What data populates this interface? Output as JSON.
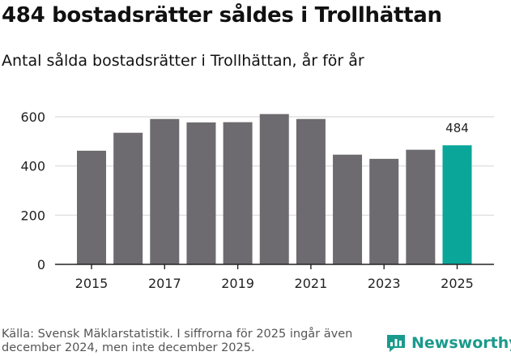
{
  "title": "484 bostadsrätter såldes i Trollhättan",
  "subtitle": "Antal sålda bostadsrätter i Trollhättan, år för år",
  "source": "Källa: Svensk Mäklarstatistik. I siffrorna för 2025 ingår även december 2024, men inte december 2025.",
  "brand": "Newsworthy",
  "colors": {
    "bar": "#6d6b70",
    "highlight": "#0aa69a",
    "grid": "#d9d9d9",
    "axis": "#222222",
    "brand": "#1a9a8c"
  },
  "chart_data": {
    "type": "bar",
    "categories": [
      "2015",
      "2016",
      "2017",
      "2018",
      "2019",
      "2020",
      "2021",
      "2022",
      "2023",
      "2024",
      "2025"
    ],
    "values": [
      462,
      535,
      591,
      577,
      578,
      611,
      591,
      446,
      429,
      466,
      484
    ],
    "x_tick_labels": [
      "2015",
      "2017",
      "2019",
      "2021",
      "2023",
      "2025"
    ],
    "y_ticks": [
      0,
      200,
      400,
      600
    ],
    "ylim": [
      0,
      650
    ],
    "highlight_index": 10,
    "highlight_label": "484",
    "xlabel": "",
    "ylabel": ""
  }
}
